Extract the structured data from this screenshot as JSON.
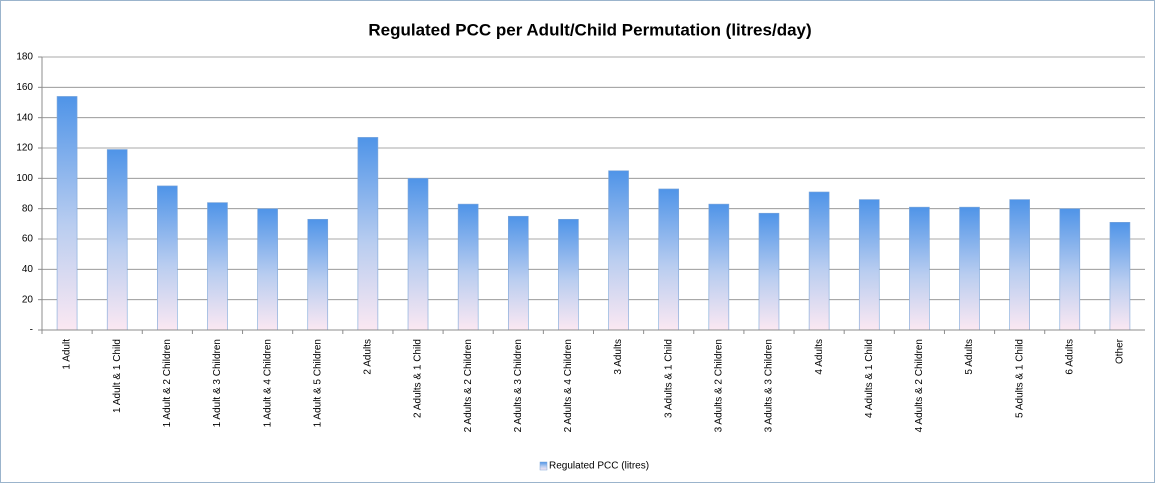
{
  "chart_data": {
    "type": "bar",
    "title": "Regulated PCC per Adult/Child Permutation (litres/day)",
    "categories": [
      "1 Adult",
      "1 Adult & 1 Child",
      "1 Adult & 2 Children",
      "1 Adult & 3 Children",
      "1 Adult & 4 Children",
      "1 Adult & 5 Children",
      "2 Adults",
      "2 Adults & 1 Child",
      "2 Adults & 2 Children",
      "2 Adults & 3 Children",
      "2 Adults & 4 Children",
      "3 Adults",
      "3 Adults & 1 Child",
      "3 Adults & 2 Children",
      "3 Adults & 3 Children",
      "4 Adults",
      "4 Adults & 1 Child",
      "4 Adults & 2 Children",
      "5 Adults",
      "5 Adults & 1 Child",
      "6 Adults",
      "Other"
    ],
    "series": [
      {
        "name": "Regulated PCC (litres)",
        "color": "#4f94e8",
        "values": [
          154,
          119,
          95,
          84,
          80,
          73,
          127,
          100,
          83,
          75,
          73,
          105,
          93,
          83,
          77,
          91,
          86,
          81,
          81,
          86,
          80,
          71
        ]
      }
    ],
    "ylim": [
      0,
      180
    ],
    "yticks": [
      {
        "value": 0,
        "label": "-"
      },
      20,
      40,
      60,
      80,
      100,
      120,
      140,
      160,
      180
    ],
    "grid": true,
    "legend": "bottom"
  }
}
